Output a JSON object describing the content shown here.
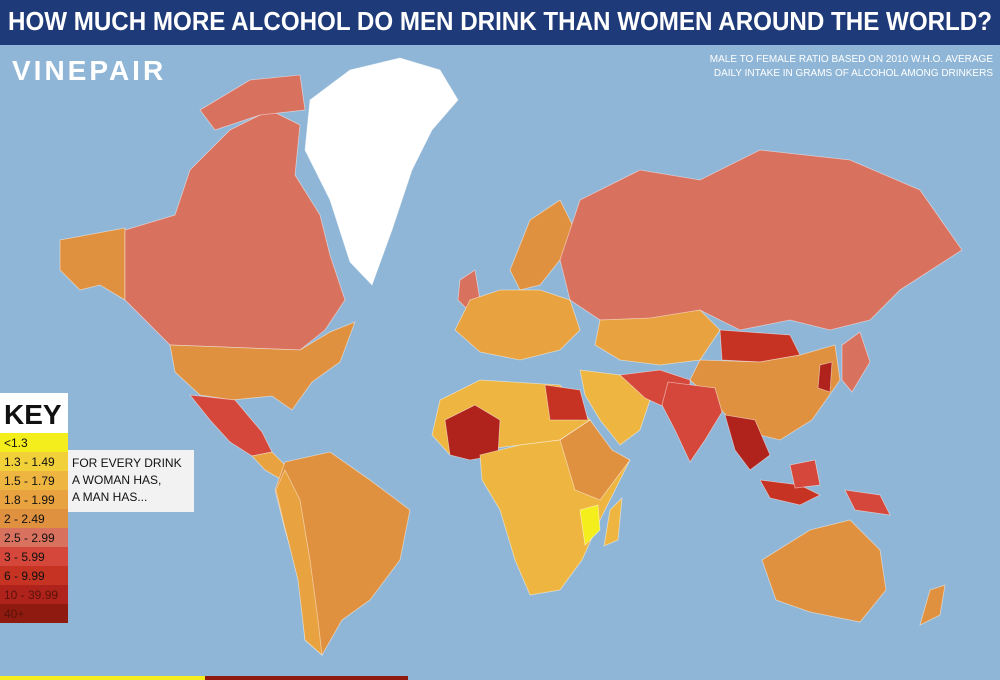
{
  "header": {
    "title": "HOW MUCH MORE ALCOHOL DO MEN DRINK THAN WOMEN AROUND THE WORLD?"
  },
  "brand": "VINEPAIR",
  "subtitle": [
    "MALE TO FEMALE RATIO BASED ON 2010 W.H.O. AVERAGE",
    "DAILY INTAKE IN GRAMS OF ALCOHOL AMONG DRINKERS"
  ],
  "key": {
    "title": "KEY",
    "items": [
      {
        "label": "<1.3",
        "color": "#f4ee1c"
      },
      {
        "label": "1.3 - 1.49",
        "color": "#f1d03a"
      },
      {
        "label": "1.5 - 1.79",
        "color": "#eeb641"
      },
      {
        "label": "1.8 - 1.99",
        "color": "#e8a23f"
      },
      {
        "label": "2 - 2.49",
        "color": "#e0913f"
      },
      {
        "label": "2.5 - 2.99",
        "color": "#d9715f"
      },
      {
        "label": "3 - 5.99",
        "color": "#d4473a"
      },
      {
        "label": "6 - 9.99",
        "color": "#c73322"
      },
      {
        "label": "10 - 39.99",
        "color": "#b0231c"
      },
      {
        "label": "40+",
        "color": "#8f1a10"
      }
    ],
    "note": [
      "FOR EVERY DRINK",
      "A WOMAN HAS,",
      "A MAN HAS..."
    ]
  }
}
